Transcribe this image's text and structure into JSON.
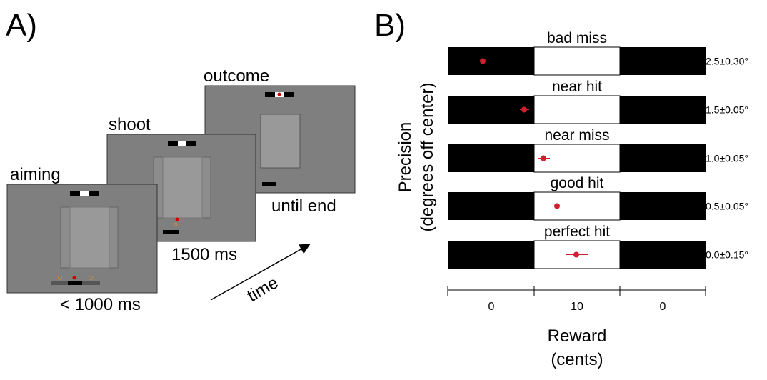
{
  "panel_a": {
    "label": "A)",
    "screens": [
      {
        "title": "aiming",
        "duration": "< 1000 ms"
      },
      {
        "title": "shoot",
        "duration": "1500 ms"
      },
      {
        "title": "outcome",
        "duration": "until end"
      }
    ],
    "arrow_label": "time"
  },
  "panel_b": {
    "label": "B)",
    "y_label_lines": [
      "Precision",
      "(degrees off center)"
    ],
    "rows": [
      {
        "name": "bad miss",
        "precision": "2.5±0.30°"
      },
      {
        "name": "near hit",
        "precision": "1.5±0.05°"
      },
      {
        "name": "near miss",
        "precision": "1.0±0.05°"
      },
      {
        "name": "good hit",
        "precision": "0.5±0.05°"
      },
      {
        "name": "perfect hit",
        "precision": "0.0±0.15°"
      }
    ],
    "x_categories": [
      "0",
      "10",
      "0"
    ],
    "x_label_lines": [
      "Reward",
      "(cents)"
    ]
  }
}
